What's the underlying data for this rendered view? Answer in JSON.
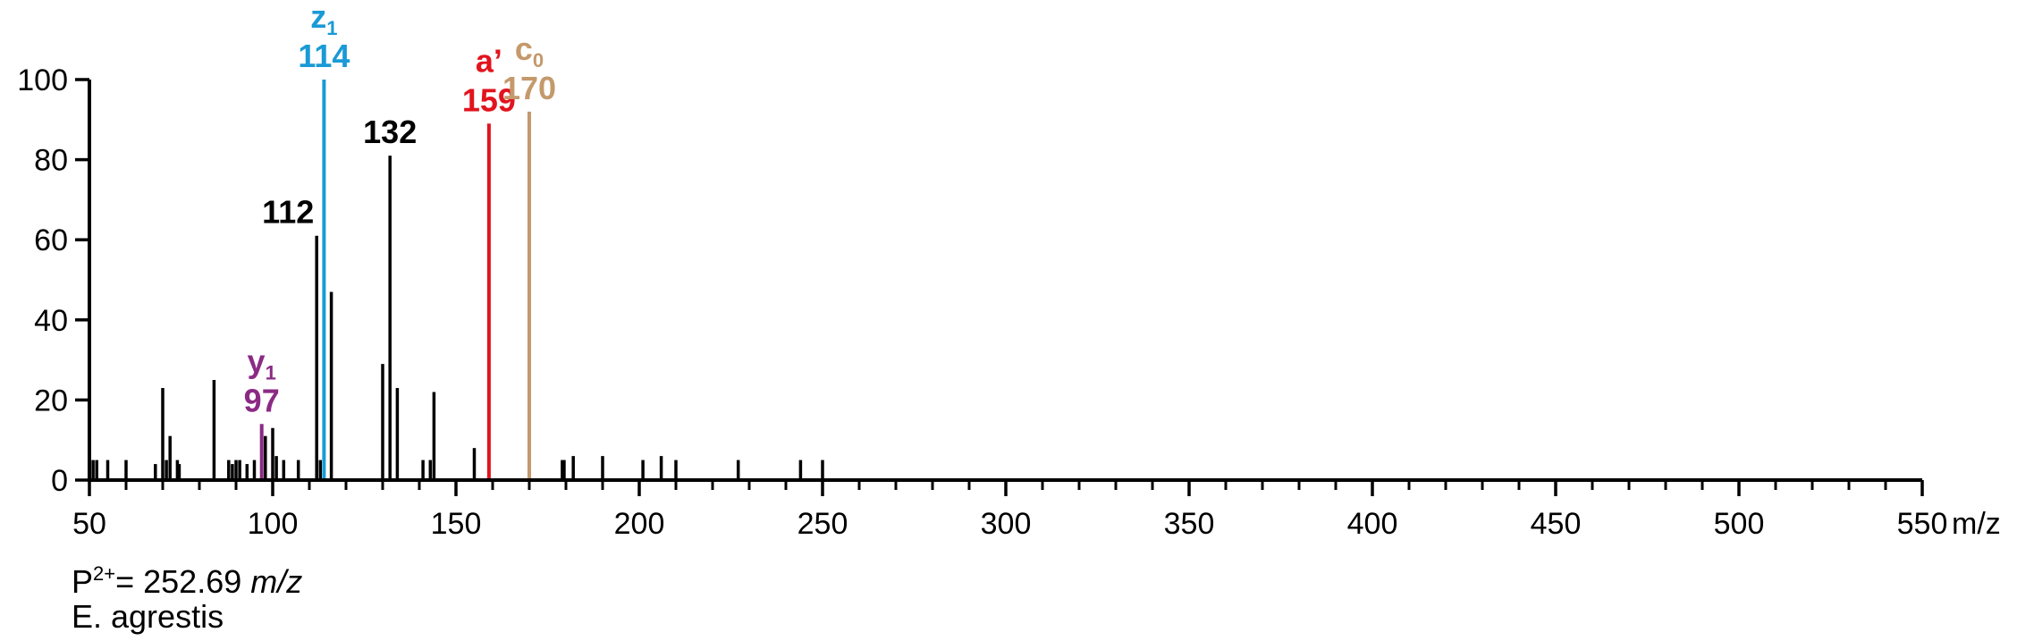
{
  "chart_data": {
    "type": "bar",
    "xlim": [
      50,
      550
    ],
    "ylim": [
      0,
      100
    ],
    "x_ticks": [
      50,
      100,
      150,
      200,
      250,
      300,
      350,
      400,
      450,
      500,
      550
    ],
    "y_ticks": [
      0,
      20,
      40,
      60,
      80,
      100
    ],
    "x_unit": "m/z",
    "x_minor_step": 10,
    "grid": false,
    "peaks": [
      {
        "x": 51,
        "y": 5
      },
      {
        "x": 52,
        "y": 5
      },
      {
        "x": 55,
        "y": 5
      },
      {
        "x": 60,
        "y": 5
      },
      {
        "x": 68,
        "y": 4
      },
      {
        "x": 70,
        "y": 23
      },
      {
        "x": 71,
        "y": 5
      },
      {
        "x": 72,
        "y": 11
      },
      {
        "x": 74,
        "y": 5
      },
      {
        "x": 74.5,
        "y": 4
      },
      {
        "x": 84,
        "y": 25
      },
      {
        "x": 88,
        "y": 5
      },
      {
        "x": 89,
        "y": 4
      },
      {
        "x": 90,
        "y": 5
      },
      {
        "x": 91,
        "y": 5
      },
      {
        "x": 93,
        "y": 4
      },
      {
        "x": 95,
        "y": 5
      },
      {
        "x": 97,
        "y": 14,
        "color": "#8b2a84"
      },
      {
        "x": 98,
        "y": 11
      },
      {
        "x": 100,
        "y": 13
      },
      {
        "x": 101,
        "y": 6
      },
      {
        "x": 103,
        "y": 5
      },
      {
        "x": 107,
        "y": 5
      },
      {
        "x": 112,
        "y": 61
      },
      {
        "x": 113,
        "y": 5
      },
      {
        "x": 114,
        "y": 100,
        "color": "#1a9ad6"
      },
      {
        "x": 116,
        "y": 47
      },
      {
        "x": 130,
        "y": 29
      },
      {
        "x": 132,
        "y": 81
      },
      {
        "x": 134,
        "y": 23
      },
      {
        "x": 141,
        "y": 5
      },
      {
        "x": 143,
        "y": 5
      },
      {
        "x": 144,
        "y": 22
      },
      {
        "x": 155,
        "y": 8
      },
      {
        "x": 159,
        "y": 89,
        "color": "#e2141d"
      },
      {
        "x": 170,
        "y": 92,
        "color": "#c4996c"
      },
      {
        "x": 179,
        "y": 5
      },
      {
        "x": 179.5,
        "y": 5
      },
      {
        "x": 182,
        "y": 6
      },
      {
        "x": 190,
        "y": 6
      },
      {
        "x": 201,
        "y": 5
      },
      {
        "x": 206,
        "y": 6
      },
      {
        "x": 210,
        "y": 5
      },
      {
        "x": 227,
        "y": 5
      },
      {
        "x": 244,
        "y": 5
      },
      {
        "x": 250,
        "y": 5
      }
    ],
    "annotations": [
      {
        "x": 112,
        "y": 61,
        "ion": "",
        "sub": "",
        "mass": "112",
        "color": "#000000"
      },
      {
        "x": 132,
        "y": 81,
        "ion": "",
        "sub": "",
        "mass": "132",
        "color": "#000000"
      },
      {
        "x": 114,
        "y": 100,
        "ion": "z",
        "sub": "1",
        "mass": "114",
        "color": "#1a9ad6"
      },
      {
        "x": 159,
        "y": 89,
        "ion": "a’",
        "sub": "",
        "mass": "159",
        "color": "#e2141d"
      },
      {
        "x": 170,
        "y": 92,
        "ion": "c",
        "sub": "0",
        "mass": "170",
        "color": "#c4996c"
      },
      {
        "x": 97,
        "y": 14,
        "ion": "y",
        "sub": "1",
        "mass": "97",
        "color": "#8b2a84"
      }
    ]
  },
  "caption": {
    "precursor_prefix": "P",
    "precursor_charge": "2+",
    "precursor_value": "= 252.69 ",
    "precursor_unit": "m/z",
    "species": "E. agrestis"
  }
}
